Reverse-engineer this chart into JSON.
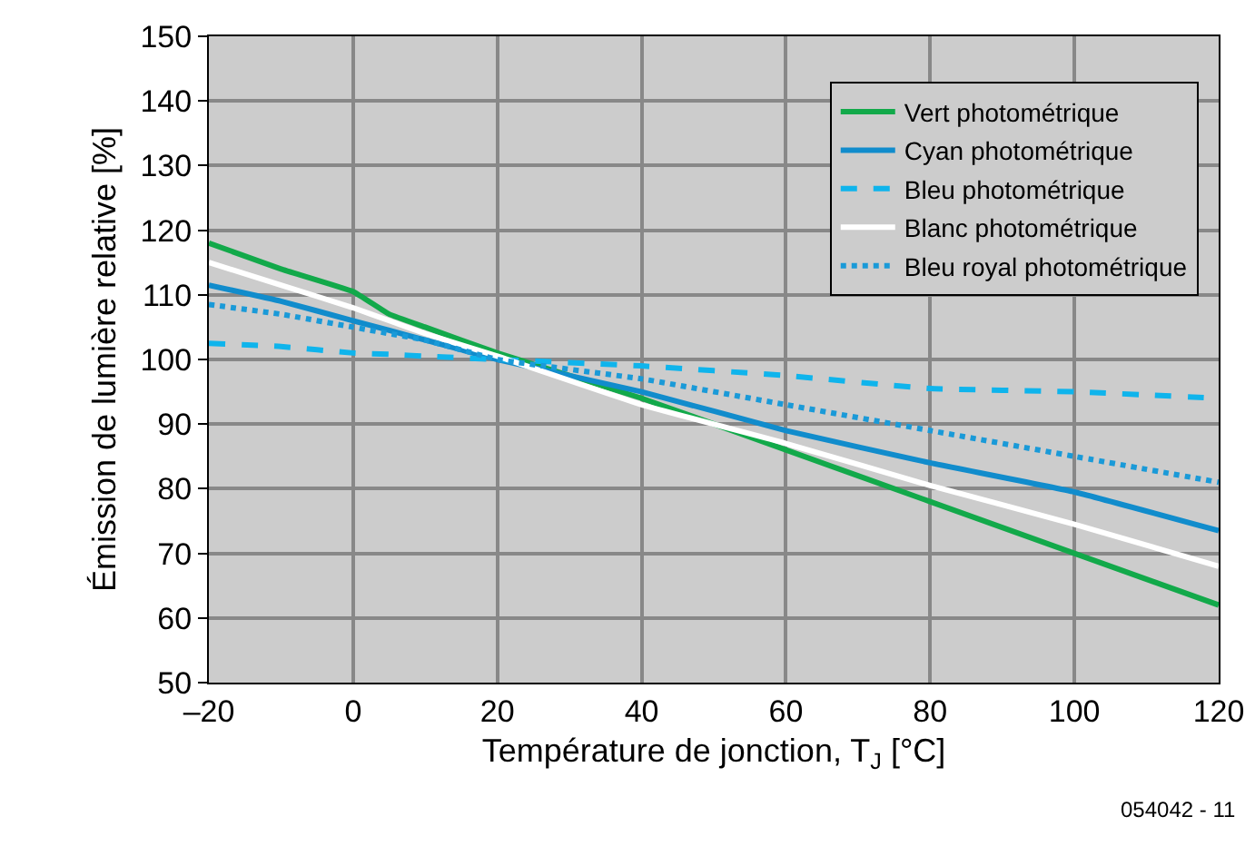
{
  "chart_data": {
    "type": "line",
    "xlabel": "Température de jonction, T$_{J}$ [°C]",
    "ylabel": "Émission de lumière relative [%]",
    "x": [
      -20,
      -10,
      0,
      5,
      10,
      20,
      40,
      60,
      80,
      100,
      120
    ],
    "series": [
      {
        "name": "Vert photométrique",
        "color": "#12a94a",
        "values": [
          118,
          114,
          110.5,
          107,
          105,
          101,
          94,
          86,
          78,
          70,
          62
        ]
      },
      {
        "name": "Cyan photométrique",
        "color": "#118ccc",
        "values": [
          111.5,
          109,
          106,
          104.5,
          103,
          100,
          95,
          89,
          84,
          79.5,
          73.5
        ]
      },
      {
        "name": "Bleu photométrique",
        "color": "#0fb4ec",
        "line_style": "dashed",
        "values": [
          102.5,
          102,
          101,
          100.8,
          100.5,
          100,
          99,
          97.5,
          95.5,
          95,
          94
        ]
      },
      {
        "name": "Blanc photométrique",
        "color": "#ffffff",
        "values": [
          115,
          111.5,
          108,
          106,
          104,
          100.5,
          93,
          87,
          80.5,
          74.5,
          68
        ]
      },
      {
        "name": "Bleu royal photométrique",
        "color": "#1a9ad8",
        "line_style": "dotted",
        "values": [
          108.5,
          107,
          105,
          104,
          103,
          100,
          97,
          93,
          89,
          85,
          81
        ]
      }
    ],
    "xlim": [
      -20,
      120
    ],
    "xticks": [
      {
        "value": -20,
        "label": "–20"
      },
      0,
      20,
      40,
      60,
      80,
      100,
      120
    ],
    "ylim": [
      50,
      150
    ],
    "yticks": [
      50,
      60,
      70,
      80,
      90,
      100,
      110,
      120,
      130,
      140,
      150
    ],
    "grid": true,
    "legend": "top right",
    "line_style": "solid",
    "marker": "none",
    "annotations": [
      "054042 - 11"
    ]
  }
}
